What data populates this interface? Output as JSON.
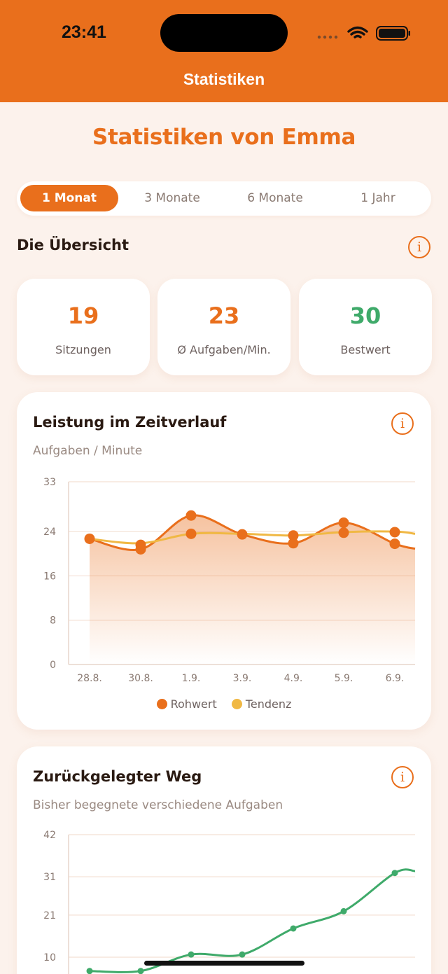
{
  "status_bar": {
    "time": "23:41"
  },
  "nav": {
    "title": "Statistiken"
  },
  "heading": "Statistiken von Emma",
  "periods": [
    {
      "label": "1 Monat",
      "active": true
    },
    {
      "label": "3 Monate",
      "active": false
    },
    {
      "label": "6 Monate",
      "active": false
    },
    {
      "label": "1 Jahr",
      "active": false
    }
  ],
  "overview": {
    "title": "Die Übersicht",
    "info": "i",
    "stats": [
      {
        "value": "19",
        "label": "Sitzungen",
        "color": "#e96f1c"
      },
      {
        "value": "23",
        "label": "Ø Aufgaben/Min.",
        "color": "#e96f1c"
      },
      {
        "value": "30",
        "label": "Bestwert",
        "color": "#3faa6a"
      }
    ]
  },
  "colors": {
    "accent": "#e96f1c",
    "trend": "#f0b844",
    "green": "#3faa6a"
  },
  "chart_data": [
    {
      "type": "line",
      "title": "Leistung im Zeitverlauf",
      "subtitle": "Aufgaben / Minute",
      "info": "i",
      "categories": [
        "28.8.",
        "30.8.",
        "1.9.",
        "3.9.",
        "4.9.",
        "5.9.",
        "6.9."
      ],
      "yticks": [
        0,
        8,
        16,
        24,
        33
      ],
      "ylim": [
        0,
        33
      ],
      "series": [
        {
          "name": "Rohwert",
          "color": "#e96f1c",
          "points": [
            [
              0,
              22.7
            ],
            [
              1,
              21.6
            ],
            [
              1,
              20.8
            ],
            [
              2,
              26.9
            ],
            [
              2,
              23.6
            ],
            [
              3,
              23.5
            ],
            [
              4,
              23.3
            ],
            [
              4,
              21.9
            ],
            [
              5,
              25.6
            ],
            [
              5,
              23.8
            ],
            [
              6,
              23.9
            ],
            [
              6,
              21.8
            ]
          ]
        },
        {
          "name": "Tendenz",
          "color": "#f0b844",
          "points": [
            [
              0,
              22.7
            ],
            [
              1,
              21.9
            ],
            [
              2,
              23.6
            ],
            [
              3,
              23.6
            ],
            [
              4,
              23.3
            ],
            [
              5,
              23.9
            ],
            [
              6,
              24.0
            ]
          ]
        }
      ],
      "grid": true
    },
    {
      "type": "line",
      "title": "Zurückgelegter Weg",
      "subtitle": "Bisher begegnete verschiedene Aufgaben",
      "info": "i",
      "yticks": [
        10,
        21,
        31,
        42
      ],
      "ylim": [
        0,
        42
      ],
      "series": [
        {
          "name": "",
          "color": "#3faa6a",
          "points": [
            [
              0,
              6.4
            ],
            [
              1,
              6.4
            ],
            [
              2,
              10.7
            ],
            [
              3,
              10.7
            ],
            [
              4,
              17.5
            ],
            [
              5,
              22.0
            ],
            [
              6,
              32.0
            ]
          ]
        }
      ],
      "grid": true
    }
  ]
}
